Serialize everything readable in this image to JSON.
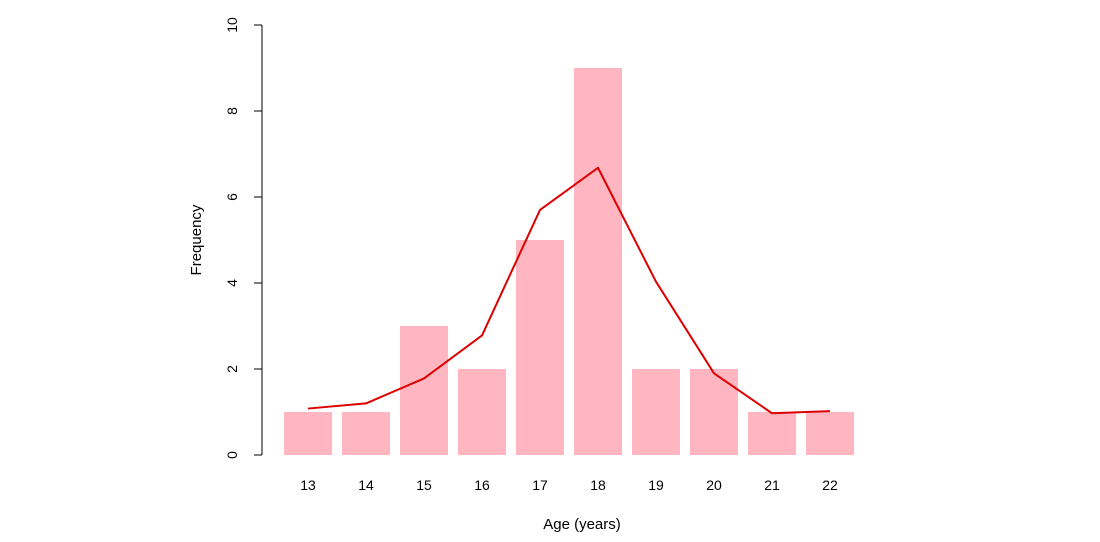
{
  "chart_data": {
    "type": "bar",
    "categories": [
      "13",
      "14",
      "15",
      "16",
      "17",
      "18",
      "19",
      "20",
      "21",
      "22"
    ],
    "values": [
      1,
      1,
      3,
      2,
      5,
      9,
      2,
      2,
      1,
      1
    ],
    "series": [
      {
        "type": "bar",
        "values": [
          1,
          1,
          3,
          2,
          5,
          9,
          2,
          2,
          1,
          1
        ]
      },
      {
        "type": "line",
        "values": [
          1.08,
          1.2,
          1.78,
          2.78,
          5.7,
          6.68,
          4.03,
          1.9,
          0.97,
          1.02
        ]
      }
    ],
    "title": "",
    "xlabel": "Age (years)",
    "ylabel": "Frequency",
    "ylim": [
      0,
      10
    ],
    "yticks": [
      "0",
      "2",
      "4",
      "6",
      "8",
      "10"
    ],
    "grid": false,
    "colors": {
      "bar": "#ffb6c1",
      "line": "#dd0000"
    }
  }
}
